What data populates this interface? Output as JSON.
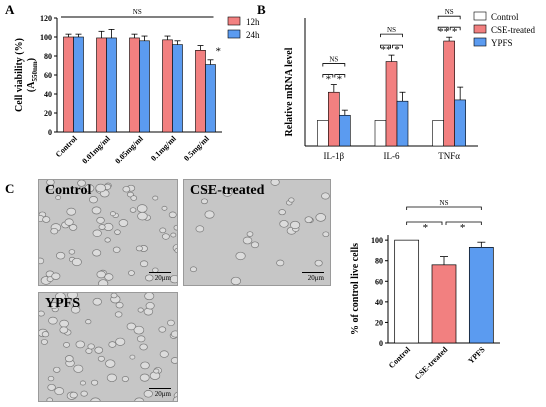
{
  "panels": {
    "A": "A",
    "B": "B",
    "C": "C"
  },
  "chart_data": [
    {
      "id": "A",
      "type": "bar",
      "ylabel_line1": "Cell viability (%)",
      "ylabel_line2": "(A",
      "ylabel_sub": "550nm",
      "ylabel_close": ")",
      "categories": [
        "Control",
        "0.01mg/ml",
        "0.05mg/ml",
        "0.1mg/ml",
        "0.5mg/ml"
      ],
      "yticks": [
        "0",
        "20",
        "40",
        "60",
        "80",
        "100",
        "120"
      ],
      "ylim": [
        0,
        120
      ],
      "series": [
        {
          "name": "12h",
          "color": "#f28080",
          "values": [
            100,
            99,
            99,
            97,
            86
          ],
          "errors": [
            3,
            7,
            4,
            4,
            5
          ]
        },
        {
          "name": "24h",
          "color": "#5b9bf0",
          "values": [
            100,
            99,
            96,
            92,
            71
          ],
          "errors": [
            3,
            9,
            5,
            4,
            5
          ]
        }
      ],
      "annotations": {
        "ns": "NS",
        "star": "*"
      }
    },
    {
      "id": "B",
      "type": "bar",
      "ylabel": "Relative  mRNA level",
      "categories": [
        "IL-1β",
        "IL-6",
        "TNFα"
      ],
      "ylim": [
        0,
        5
      ],
      "series": [
        {
          "name": "Control",
          "color": "#ffffff",
          "values": [
            1,
            1,
            1
          ],
          "errors": [
            0,
            0,
            0
          ]
        },
        {
          "name": "CSE-treated",
          "color": "#f28080",
          "values": [
            2.1,
            3.3,
            4.1
          ],
          "errors": [
            0.3,
            0.25,
            0.15
          ]
        },
        {
          "name": "YPFS",
          "color": "#5b9bf0",
          "values": [
            1.2,
            1.75,
            1.8
          ],
          "errors": [
            0.2,
            0.35,
            0.5
          ]
        }
      ],
      "significance": [
        {
          "group": "IL-1β",
          "pair1": "*",
          "pair2": "*",
          "ns": "NS"
        },
        {
          "group": "IL-6",
          "pair1": "**",
          "pair2": "*",
          "ns": "NS"
        },
        {
          "group": "TNFα",
          "pair1": "**",
          "pair2": "*",
          "ns": "NS"
        }
      ]
    },
    {
      "id": "C",
      "type": "bar",
      "ylabel": "% of control live cells",
      "categories": [
        "Control",
        "CSE-treated",
        "YPFS"
      ],
      "yticks": [
        "0",
        "20",
        "40",
        "60",
        "80",
        "100"
      ],
      "ylim": [
        0,
        105
      ],
      "values": [
        100,
        76,
        93
      ],
      "errors": [
        0,
        8,
        5
      ],
      "colors": [
        "#ffffff",
        "#f28080",
        "#5b9bf0"
      ],
      "annotations": {
        "ns": "NS",
        "star1": "*",
        "star2": "*"
      }
    }
  ],
  "micrographs": [
    {
      "label": "Control",
      "scale": "20μm"
    },
    {
      "label": "CSE-treated",
      "scale": "20μm"
    },
    {
      "label": "YPFS",
      "scale": "20μm"
    }
  ]
}
